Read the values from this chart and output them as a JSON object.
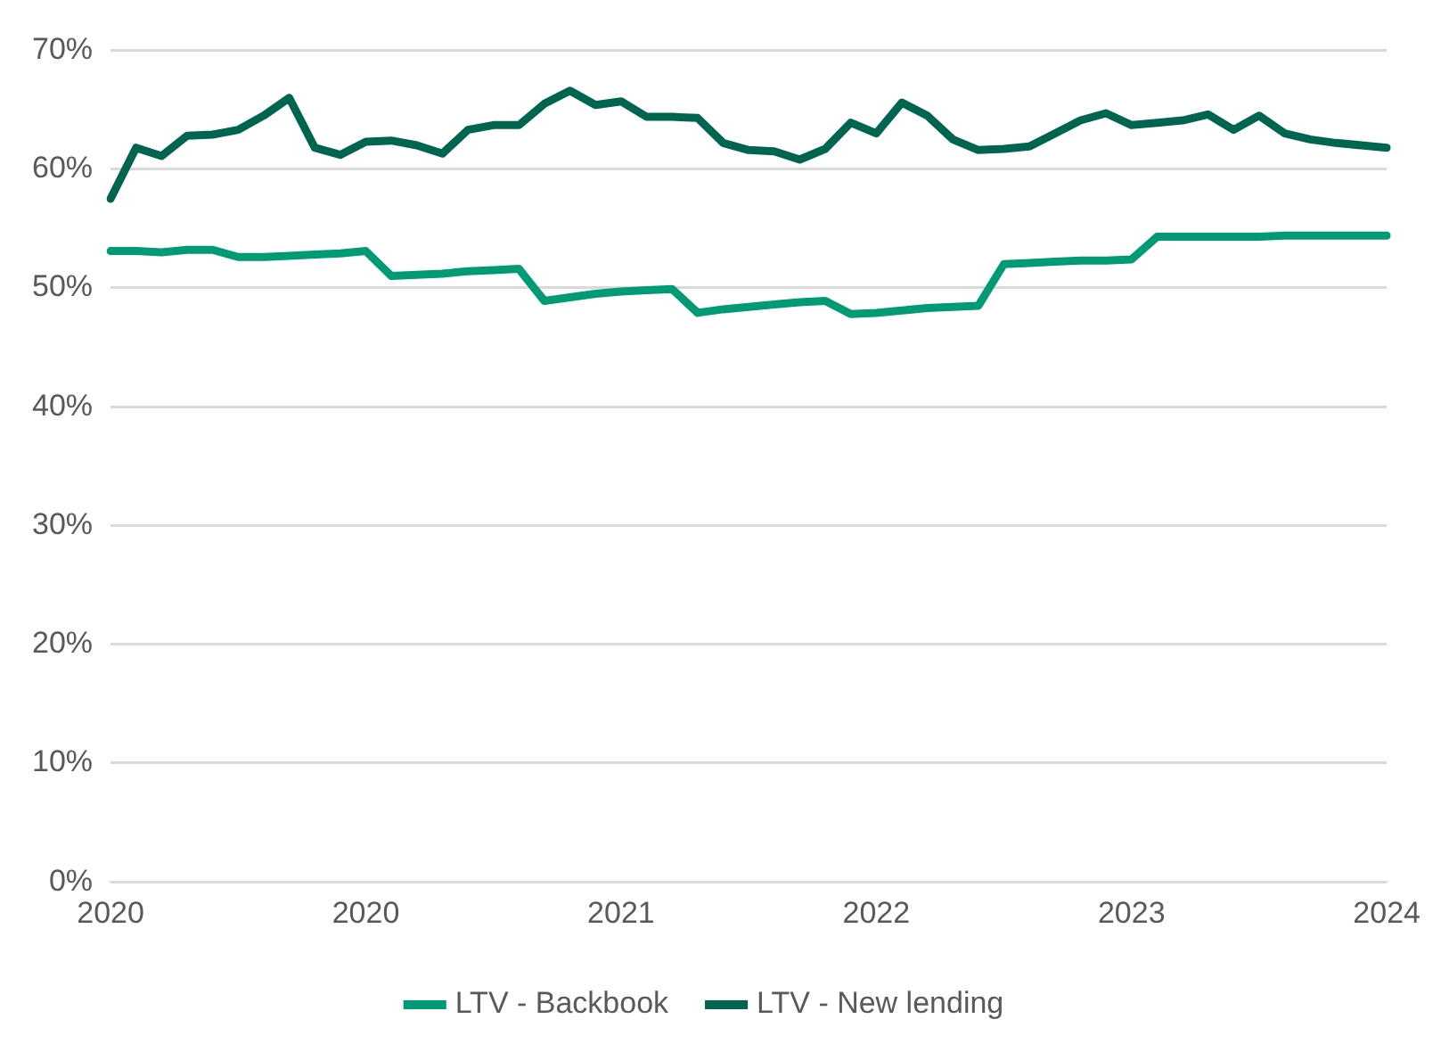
{
  "chart_data": {
    "type": "line",
    "categories": [
      "2020",
      null,
      null,
      null,
      null,
      null,
      null,
      null,
      null,
      null,
      "2020",
      null,
      null,
      null,
      null,
      null,
      null,
      null,
      null,
      null,
      "2021",
      null,
      null,
      null,
      null,
      null,
      null,
      null,
      null,
      null,
      "2022",
      null,
      null,
      null,
      null,
      null,
      null,
      null,
      null,
      null,
      "2023",
      null,
      null,
      null,
      null,
      null,
      null,
      null,
      null,
      null,
      "2024"
    ],
    "series": [
      {
        "name": "LTV - Backbook",
        "color": "#009a75",
        "values": [
          53.1,
          53.1,
          53.0,
          53.2,
          53.2,
          52.6,
          52.6,
          52.7,
          52.8,
          52.9,
          53.1,
          51.0,
          51.1,
          51.2,
          51.4,
          51.5,
          51.6,
          48.9,
          49.2,
          49.5,
          49.7,
          49.8,
          49.9,
          47.9,
          48.2,
          48.4,
          48.6,
          48.8,
          48.9,
          47.8,
          47.9,
          48.1,
          48.3,
          48.4,
          48.5,
          52.0,
          52.1,
          52.2,
          52.3,
          52.3,
          52.4,
          54.3,
          54.3,
          54.3,
          54.3,
          54.3,
          54.4,
          54.4,
          54.4,
          54.4,
          54.4
        ]
      },
      {
        "name": "LTV - New lending",
        "color": "#00654f",
        "values": [
          57.5,
          61.8,
          61.1,
          62.8,
          62.9,
          63.3,
          64.5,
          66.0,
          61.8,
          61.2,
          62.3,
          62.4,
          62.0,
          61.3,
          63.3,
          63.7,
          63.7,
          65.5,
          66.6,
          65.4,
          65.7,
          64.4,
          64.4,
          64.3,
          62.2,
          61.6,
          61.5,
          60.8,
          61.7,
          63.9,
          63.0,
          65.6,
          64.5,
          62.5,
          61.6,
          61.7,
          61.9,
          63.0,
          64.1,
          64.7,
          63.7,
          63.9,
          64.1,
          64.6,
          63.3,
          64.5,
          63.0,
          62.5,
          62.2,
          62.0,
          61.8
        ]
      }
    ],
    "ylim": [
      0,
      70
    ],
    "yticks": [
      {
        "value": 0,
        "label": "0%"
      },
      {
        "value": 10,
        "label": "10%"
      },
      {
        "value": 20,
        "label": "20%"
      },
      {
        "value": 30,
        "label": "30%"
      },
      {
        "value": 40,
        "label": "40%"
      },
      {
        "value": 50,
        "label": "50%"
      },
      {
        "value": 60,
        "label": "60%"
      },
      {
        "value": 70,
        "label": "70%"
      }
    ],
    "grid": "y",
    "legend": "bottom",
    "marker": "none",
    "line_style": "solid"
  }
}
